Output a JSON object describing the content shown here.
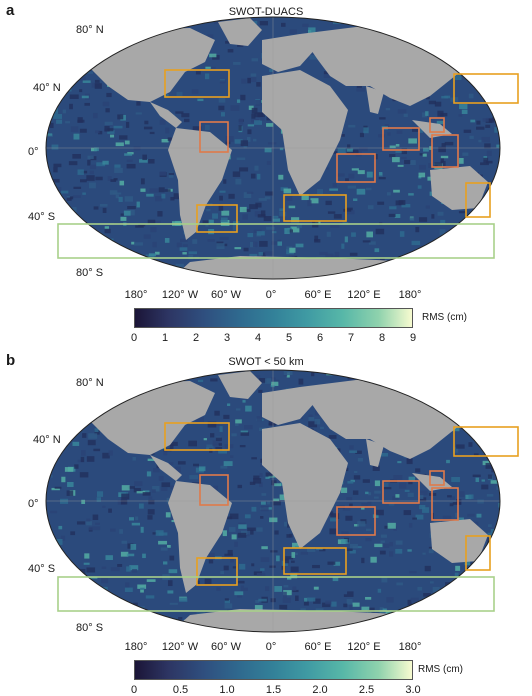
{
  "chart_data": [
    {
      "type": "heatmap",
      "panel": "a",
      "title": "SWOT-DUACS",
      "projection": "Robinson",
      "lat_labels": [
        "80° N",
        "40° N",
        "0°",
        "40° S",
        "80° S"
      ],
      "lon_labels": [
        "180°",
        "120° W",
        "60° W",
        "0°",
        "60° E",
        "120° E",
        "180°"
      ],
      "colorbar": {
        "label": "RMS (cm)",
        "ticks": [
          "0",
          "1",
          "2",
          "3",
          "4",
          "5",
          "6",
          "7",
          "8",
          "9"
        ],
        "range": [
          0,
          9
        ]
      },
      "regions_highlighted": 11,
      "colors": {
        "land": "#a8a8a8",
        "ocean_low": "#1b1537",
        "ocean_high": "#f7fbd0",
        "box_orange": "#e8a020",
        "box_coral": "#e07a4a",
        "box_green": "#a8d08a"
      }
    },
    {
      "type": "heatmap",
      "panel": "b",
      "title": "SWOT < 50 km",
      "projection": "Robinson",
      "lat_labels": [
        "80° N",
        "40° N",
        "0°",
        "40° S",
        "80° S"
      ],
      "lon_labels": [
        "180°",
        "120° W",
        "60° W",
        "0°",
        "60° E",
        "120° E",
        "180°"
      ],
      "colorbar": {
        "label": "RMS (cm)",
        "ticks": [
          "0",
          "0.5",
          "1.0",
          "1.5",
          "2.0",
          "2.5",
          "3.0"
        ],
        "range": [
          0,
          3.0
        ]
      },
      "regions_highlighted": 11
    }
  ],
  "panels": {
    "a": {
      "letter": "a",
      "title": "SWOT-DUACS"
    },
    "b": {
      "letter": "b",
      "title": "SWOT < 50 km"
    }
  }
}
